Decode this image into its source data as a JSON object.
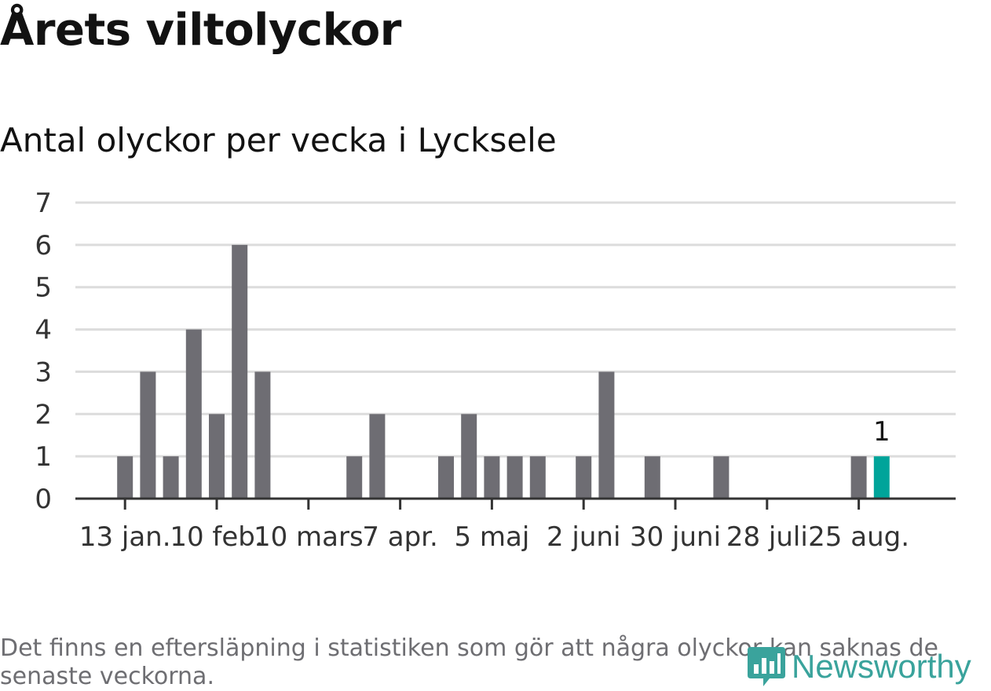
{
  "header": {
    "title": "Årets viltolyckor",
    "subtitle": "Antal olyckor per vecka i Lycksele"
  },
  "footer": {
    "note": "Det finns en eftersläpning i statistiken som gör att några olyckor kan saknas de senaste veckorna.",
    "logo_text": "Newsworthy",
    "logo_icon": "newsworthy-logo-icon"
  },
  "colors": {
    "bar": "#6e6d73",
    "highlight": "#00a49a",
    "grid": "#dcdcdc",
    "axis": "#333333",
    "text": "#121212"
  },
  "chart_data": {
    "type": "bar",
    "x_tick_labels": [
      "13 jan.",
      "10 feb.",
      "10 mars",
      "7 apr.",
      "5 maj",
      "2 juni",
      "30 juni",
      "28 juli",
      "25 aug."
    ],
    "x_tick_weeks": [
      2,
      6,
      10,
      14,
      18,
      22,
      26,
      30,
      34
    ],
    "week_range": [
      1,
      35
    ],
    "weeks": [
      1,
      2,
      3,
      4,
      5,
      6,
      7,
      8,
      9,
      10,
      11,
      12,
      13,
      14,
      15,
      16,
      17,
      18,
      19,
      20,
      21,
      22,
      23,
      24,
      25,
      26,
      27,
      28,
      29,
      30,
      31,
      32,
      33,
      34,
      35
    ],
    "values": [
      0,
      1,
      3,
      1,
      4,
      2,
      6,
      3,
      0,
      0,
      0,
      1,
      2,
      0,
      0,
      1,
      2,
      1,
      1,
      1,
      0,
      1,
      3,
      0,
      1,
      0,
      0,
      1,
      0,
      0,
      0,
      0,
      0,
      1,
      1
    ],
    "highlight_index": 34,
    "highlight_label": "1",
    "ylim": [
      0,
      7
    ],
    "yticks": [
      "0",
      "1",
      "2",
      "3",
      "4",
      "5",
      "6",
      "7"
    ],
    "grid": true
  }
}
